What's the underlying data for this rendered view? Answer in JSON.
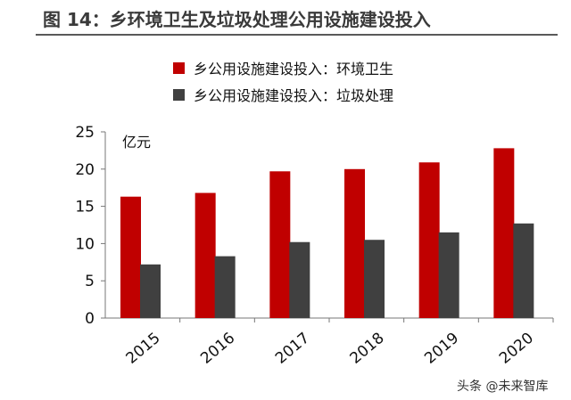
{
  "title": "图 14：乡环境卫生及垃圾处理公用设施建设投入",
  "watermark": "头条 @未来智库",
  "colors": {
    "series1": "#c00000",
    "series2": "#404040",
    "title": "#3a3a3a"
  },
  "chart_data": {
    "type": "bar",
    "categories": [
      "2015",
      "2016",
      "2017",
      "2018",
      "2019",
      "2020"
    ],
    "series": [
      {
        "name": "乡公用设施建设投入：环境卫生",
        "values": [
          16.3,
          16.8,
          19.7,
          20.0,
          20.9,
          22.8
        ]
      },
      {
        "name": "乡公用设施建设投入：垃圾处理",
        "values": [
          7.2,
          8.3,
          10.2,
          10.5,
          11.5,
          12.7
        ]
      }
    ],
    "unit": "亿元",
    "yticks": [
      0,
      5,
      10,
      15,
      20,
      25
    ],
    "ylim": [
      0,
      25
    ],
    "grid": false,
    "legend_position": "top"
  }
}
